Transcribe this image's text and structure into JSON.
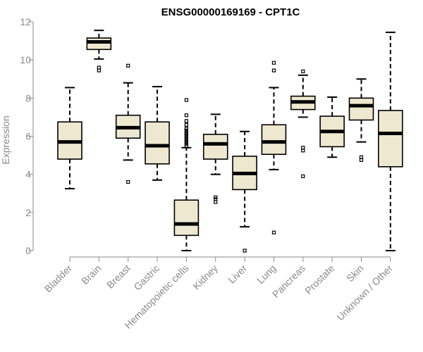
{
  "chart_data": {
    "type": "box",
    "title": "ENSG00000169169 - CPT1C",
    "ylabel": "Expression",
    "xlabel": "",
    "ylim": [
      0,
      12
    ],
    "yticks": [
      0,
      2,
      4,
      6,
      8,
      10,
      12
    ],
    "box_fill": "#efe8d0",
    "grid": false,
    "categories": [
      "Bladder",
      "Brain",
      "Breast",
      "Gastric",
      "Hematopoietic cells",
      "Kidney",
      "Liver",
      "Lung",
      "Pancreas",
      "Prostate",
      "Skin",
      "Unknown / Other"
    ],
    "boxes": [
      {
        "min": 3.25,
        "q1": 4.8,
        "median": 5.7,
        "q3": 6.75,
        "max": 8.55,
        "outliers": []
      },
      {
        "min": 10.05,
        "q1": 10.55,
        "median": 10.95,
        "q3": 11.15,
        "max": 11.55,
        "outliers": [
          9.45,
          9.6
        ]
      },
      {
        "min": 4.75,
        "q1": 5.9,
        "median": 6.45,
        "q3": 7.1,
        "max": 8.8,
        "outliers": [
          3.6,
          9.7
        ]
      },
      {
        "min": 3.7,
        "q1": 4.55,
        "median": 5.5,
        "q3": 6.75,
        "max": 8.6,
        "outliers": []
      },
      {
        "min": 0.0,
        "q1": 0.8,
        "median": 1.4,
        "q3": 2.65,
        "max": 5.4,
        "outliers": [
          5.5,
          5.6,
          5.7,
          5.8,
          5.9,
          6.0,
          6.1,
          6.2,
          6.3,
          6.4,
          6.6,
          6.8,
          7.1,
          7.9
        ]
      },
      {
        "min": 4.0,
        "q1": 4.8,
        "median": 5.6,
        "q3": 6.1,
        "max": 7.15,
        "outliers": [
          2.55,
          2.7,
          2.8
        ]
      },
      {
        "min": 1.25,
        "q1": 3.2,
        "median": 4.05,
        "q3": 4.95,
        "max": 6.25,
        "outliers": [
          0.0
        ]
      },
      {
        "min": 4.25,
        "q1": 5.05,
        "median": 5.7,
        "q3": 6.6,
        "max": 8.55,
        "outliers": [
          0.95,
          9.45,
          9.85
        ]
      },
      {
        "min": 7.0,
        "q1": 7.4,
        "median": 7.8,
        "q3": 8.1,
        "max": 9.2,
        "outliers": [
          3.9,
          5.25,
          5.4,
          9.4
        ]
      },
      {
        "min": 4.9,
        "q1": 5.45,
        "median": 6.25,
        "q3": 7.05,
        "max": 8.05,
        "outliers": []
      },
      {
        "min": 5.7,
        "q1": 6.85,
        "median": 7.6,
        "q3": 8.0,
        "max": 9.0,
        "outliers": [
          4.75,
          4.9
        ]
      },
      {
        "min": 0.0,
        "q1": 4.4,
        "median": 6.15,
        "q3": 7.35,
        "max": 11.45,
        "outliers": []
      }
    ]
  }
}
